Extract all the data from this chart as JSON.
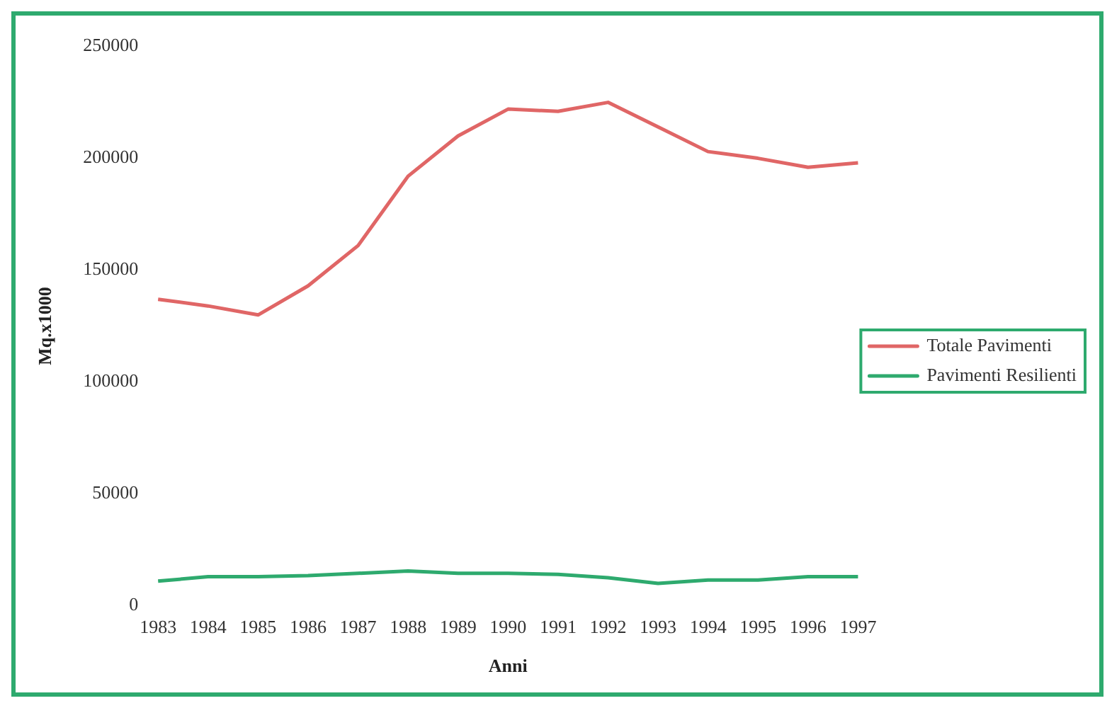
{
  "chart_data": {
    "type": "line",
    "xlabel": "Anni",
    "ylabel": "Mq.x1000",
    "categories": [
      "1983",
      "1984",
      "1985",
      "1986",
      "1987",
      "1988",
      "1989",
      "1990",
      "1991",
      "1992",
      "1993",
      "1994",
      "1995",
      "1996",
      "1997"
    ],
    "series": [
      {
        "name": "Totale Pavimenti",
        "color": "#e06666",
        "values": [
          137000,
          134000,
          130000,
          143000,
          161000,
          192000,
          210000,
          222000,
          221000,
          225000,
          214000,
          203000,
          200000,
          196000,
          198000
        ]
      },
      {
        "name": "Pavimenti Resilienti",
        "color": "#2eaa6e",
        "values": [
          11000,
          13000,
          13000,
          13500,
          14500,
          15500,
          14500,
          14500,
          14000,
          12500,
          10000,
          11500,
          11500,
          13000,
          13000
        ]
      }
    ],
    "ylim": [
      0,
      250000
    ],
    "yticks": [
      0,
      50000,
      100000,
      150000,
      200000,
      250000
    ],
    "grid": false,
    "legend": "right",
    "marker": "none",
    "line_style": "solid"
  }
}
